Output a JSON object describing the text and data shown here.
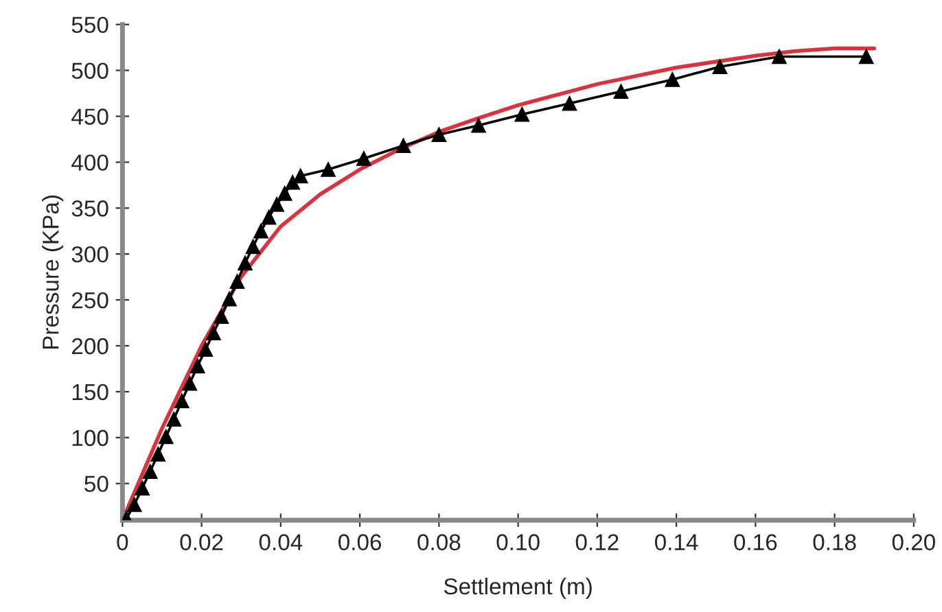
{
  "chart_data": {
    "type": "line",
    "xlabel": "Settlement (m)",
    "ylabel": "Pressure (KPa)",
    "xlim": [
      0,
      0.2
    ],
    "ylim": [
      10,
      550
    ],
    "xticks": [
      0,
      0.02,
      0.04,
      0.06,
      0.08,
      {
        "value": 0.1,
        "label": "0.10"
      },
      0.12,
      0.14,
      0.16,
      0.18,
      {
        "value": 0.2,
        "label": "0.20"
      }
    ],
    "yticks": [
      50,
      100,
      150,
      200,
      250,
      300,
      350,
      400,
      450,
      500,
      550
    ],
    "grid": false,
    "series": [
      {
        "color": "#000000",
        "marker": "triangle",
        "x": [
          0.001,
          0.003,
          0.005,
          0.007,
          0.009,
          0.011,
          0.013,
          0.015,
          0.017,
          0.019,
          0.021,
          0.023,
          0.025,
          0.027,
          0.029,
          0.031,
          0.033,
          0.035,
          0.037,
          0.039,
          0.041,
          0.043,
          0.045,
          0.052,
          0.061,
          0.071,
          0.08,
          0.09,
          0.101,
          0.113,
          0.126,
          0.139,
          0.151,
          0.166,
          0.188
        ],
        "values": [
          12,
          27,
          45,
          63,
          82,
          101,
          120,
          140,
          159,
          178,
          196,
          214,
          232,
          251,
          270,
          290,
          308,
          325,
          340,
          354,
          366,
          378,
          385,
          392,
          404,
          418,
          430,
          440,
          452,
          464,
          477,
          490,
          504,
          515,
          515
        ]
      },
      {
        "color": "#d9333f",
        "marker": "none",
        "x": [
          0,
          0.01,
          0.02,
          0.03,
          0.04,
          0.05,
          0.06,
          0.07,
          0.08,
          0.09,
          0.1,
          0.12,
          0.14,
          0.16,
          0.17,
          0.18,
          0.19
        ],
        "values": [
          10,
          110,
          200,
          275,
          330,
          365,
          392,
          414,
          433,
          448,
          462,
          485,
          503,
          516,
          521,
          524,
          524
        ]
      }
    ]
  }
}
